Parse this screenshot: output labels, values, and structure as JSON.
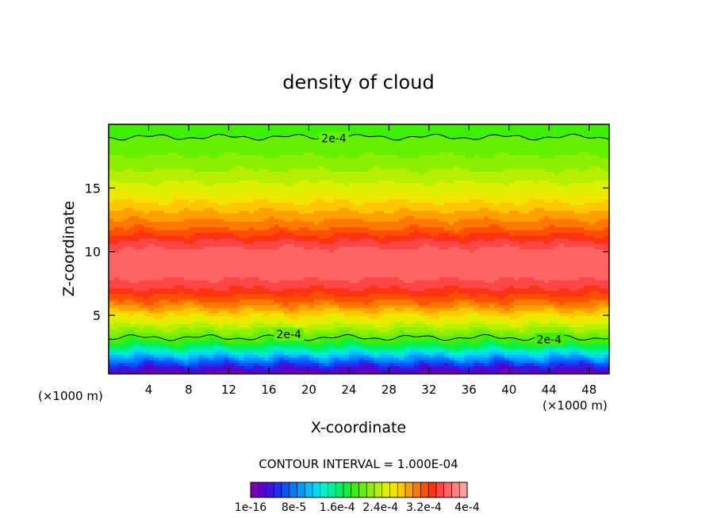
{
  "chart_data": {
    "type": "heatmap",
    "title": "density of cloud",
    "xlabel": "X-coordinate",
    "ylabel": "Z-coordinate",
    "x_unit_left": "(×1000 m)",
    "x_unit_right": "(×1000 m)",
    "xlim": [
      0,
      50
    ],
    "ylim": [
      0.4,
      20
    ],
    "x_ticks": [
      4,
      8,
      12,
      16,
      20,
      24,
      28,
      32,
      36,
      40,
      44,
      48
    ],
    "y_ticks": [
      5,
      10,
      15
    ],
    "contour_interval_label": "CONTOUR INTERVAL = 1.000E-04",
    "contour_labels": [
      {
        "text": "2e-4",
        "x": 22.5,
        "z": 18.9
      },
      {
        "text": "2e-4",
        "x": 18.0,
        "z": 3.5
      },
      {
        "text": "2e-4",
        "x": 44.0,
        "z": 3.1
      }
    ],
    "colorbar": {
      "colors": [
        "#7a00b4",
        "#5a00c8",
        "#3c14dc",
        "#1e32f0",
        "#0a55ff",
        "#0078ff",
        "#009bff",
        "#00beff",
        "#00dcf0",
        "#00f0c8",
        "#00f096",
        "#00f064",
        "#14f032",
        "#3cf000",
        "#64f000",
        "#8cf000",
        "#b4f000",
        "#dcf000",
        "#f0e600",
        "#ffc800",
        "#ffa000",
        "#ff7800",
        "#ff5000",
        "#ff3214",
        "#ff4646",
        "#ff6464",
        "#ff8282",
        "#ffa0a0"
      ],
      "tick_labels": [
        "1e-16",
        "8e-5",
        "1.6e-4",
        "2.4e-4",
        "3.2e-4",
        "4e-4"
      ],
      "min": 0,
      "max": 0.0004
    },
    "vertical_profile": {
      "z": [
        0.4,
        1.0,
        1.5,
        2.0,
        2.5,
        3.0,
        4.0,
        5.0,
        6.0,
        7.0,
        8.0,
        9.0,
        10.0,
        11.0,
        12.0,
        13.0,
        14.0,
        15.0,
        16.0,
        17.0,
        18.0,
        19.0,
        20.0
      ],
      "value": [
        1e-05,
        4e-05,
        8e-05,
        0.00012,
        0.00016,
        0.00019,
        0.00023,
        0.00027,
        0.00031,
        0.00034,
        0.00036,
        0.00037,
        0.000365,
        0.00034,
        0.00031,
        0.00029,
        0.00027,
        0.00025,
        0.000235,
        0.00022,
        0.00021,
        0.0002,
        0.00019
      ]
    }
  }
}
